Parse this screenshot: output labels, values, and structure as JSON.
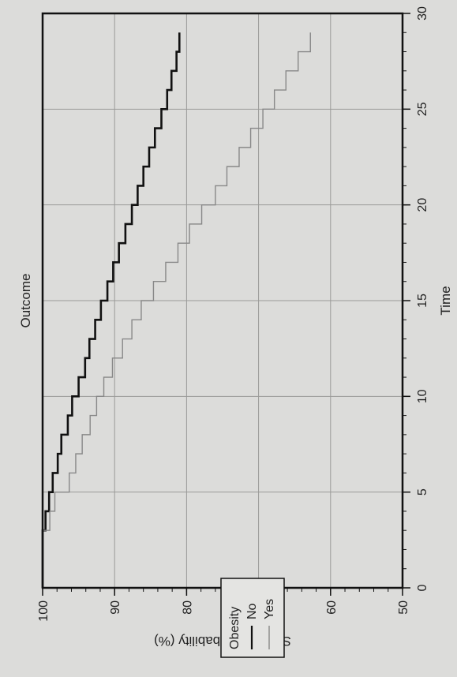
{
  "chart_data": {
    "type": "line",
    "title": "Outcome",
    "xlabel": "Time",
    "ylabel": "Survival probability (%)",
    "xlim": [
      0,
      30
    ],
    "ylim": [
      50,
      100
    ],
    "x_ticks": [
      "0",
      "5",
      "10",
      "15",
      "20",
      "25",
      "30"
    ],
    "y_ticks": [
      "100",
      "90",
      "80",
      "70",
      "60",
      "50"
    ],
    "grid": true,
    "legend": {
      "title": "Obesity",
      "placement": "top-right",
      "entries": [
        "No",
        "Yes"
      ]
    },
    "series": [
      {
        "name": "No",
        "color": "#111111",
        "steps": [
          [
            0,
            100
          ],
          [
            3,
            99.6
          ],
          [
            4,
            99.1
          ],
          [
            5,
            98.6
          ],
          [
            6,
            97.9
          ],
          [
            7,
            97.4
          ],
          [
            8,
            96.5
          ],
          [
            9,
            95.9
          ],
          [
            10,
            95.0
          ],
          [
            11,
            94.1
          ],
          [
            12,
            93.5
          ],
          [
            13,
            92.7
          ],
          [
            14,
            91.9
          ],
          [
            15,
            91.0
          ],
          [
            16,
            90.2
          ],
          [
            17,
            89.4
          ],
          [
            18,
            88.5
          ],
          [
            19,
            87.6
          ],
          [
            20,
            86.8
          ],
          [
            21,
            86.0
          ],
          [
            22,
            85.2
          ],
          [
            23,
            84.4
          ],
          [
            24,
            83.5
          ],
          [
            25,
            82.7
          ],
          [
            26,
            82.1
          ],
          [
            27,
            81.4
          ],
          [
            28,
            81.0
          ],
          [
            29,
            81.0
          ]
        ]
      },
      {
        "name": "Yes",
        "color": "#888888",
        "steps": [
          [
            0,
            100
          ],
          [
            3,
            99.0
          ],
          [
            4,
            98.3
          ],
          [
            5,
            96.3
          ],
          [
            6,
            95.4
          ],
          [
            7,
            94.5
          ],
          [
            8,
            93.4
          ],
          [
            9,
            92.5
          ],
          [
            10,
            91.5
          ],
          [
            11,
            90.3
          ],
          [
            12,
            88.9
          ],
          [
            13,
            87.6
          ],
          [
            14,
            86.3
          ],
          [
            15,
            84.6
          ],
          [
            16,
            82.9
          ],
          [
            17,
            81.2
          ],
          [
            18,
            79.6
          ],
          [
            19,
            77.9
          ],
          [
            20,
            76.0
          ],
          [
            21,
            74.4
          ],
          [
            22,
            72.7
          ],
          [
            23,
            71.1
          ],
          [
            24,
            69.4
          ],
          [
            25,
            67.8
          ],
          [
            26,
            66.2
          ],
          [
            27,
            64.5
          ],
          [
            28,
            62.8
          ],
          [
            29,
            62.8
          ]
        ]
      }
    ]
  }
}
